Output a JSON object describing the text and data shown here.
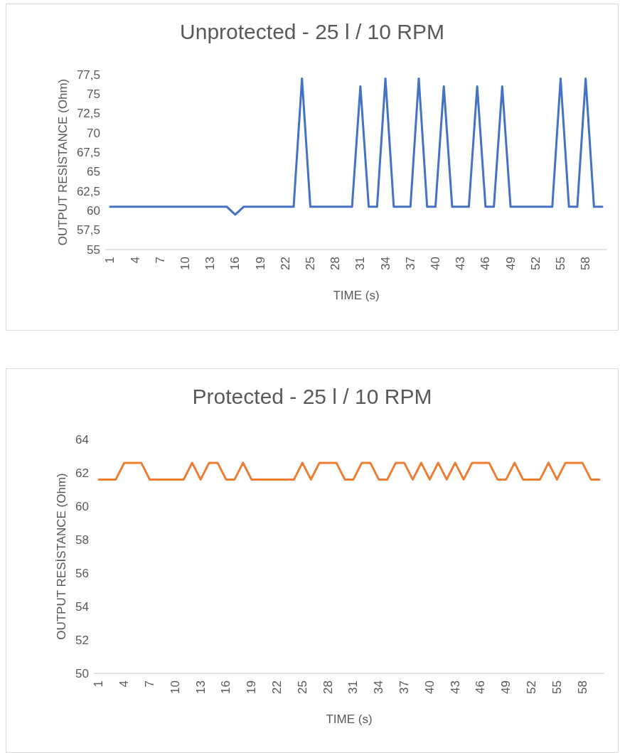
{
  "chart_data": [
    {
      "type": "line",
      "title": "Unprotected - 25 l / 10 RPM",
      "xlabel": "TIME (s)",
      "ylabel": "OUTPUT RESİSTANCE (Ohm)",
      "categories": [
        "1",
        null,
        null,
        "4",
        null,
        null,
        "7",
        null,
        null,
        "10",
        null,
        null,
        "13",
        null,
        null,
        "16",
        null,
        null,
        "19",
        null,
        null,
        "22",
        null,
        null,
        "25",
        null,
        null,
        "28",
        null,
        null,
        "31",
        null,
        null,
        "34",
        null,
        null,
        "37",
        null,
        null,
        "40",
        null,
        null,
        "43",
        null,
        null,
        "46",
        null,
        null,
        "49",
        null,
        null,
        "52",
        null,
        null,
        "55",
        null,
        null,
        "58",
        null,
        null
      ],
      "series": [
        {
          "color": "#4472c4",
          "values": [
            60.5,
            60.5,
            60.5,
            60.5,
            60.5,
            60.5,
            60.5,
            60.5,
            60.5,
            60.5,
            60.5,
            60.5,
            60.5,
            60.5,
            60.5,
            59.5,
            60.5,
            60.5,
            60.5,
            60.5,
            60.5,
            60.5,
            60.5,
            77,
            60.5,
            60.5,
            60.5,
            60.5,
            60.5,
            60.5,
            76,
            60.5,
            60.5,
            77,
            60.5,
            60.5,
            60.5,
            77,
            60.5,
            60.5,
            76,
            60.5,
            60.5,
            60.5,
            76,
            60.5,
            60.5,
            76,
            60.5,
            60.5,
            60.5,
            60.5,
            60.5,
            60.5,
            77,
            60.5,
            60.5,
            77,
            60.5,
            60.5
          ]
        }
      ],
      "ylim": [
        55,
        77.5
      ],
      "yticks": [
        55,
        {
          "value": 57.5,
          "label": "57,5"
        },
        60,
        {
          "value": 62.5,
          "label": "62,5"
        },
        65,
        {
          "value": 67.5,
          "label": "67,5"
        },
        70,
        {
          "value": 72.5,
          "label": "72,5"
        },
        75,
        {
          "value": 77.5,
          "label": "77,5"
        }
      ],
      "grid": false,
      "marker": "none"
    },
    {
      "type": "line",
      "title": "Protected - 25 l / 10 RPM",
      "xlabel": "TIME (s)",
      "ylabel": "OUTPUT RESİSTANCE (Ohm)",
      "categories": [
        "1",
        null,
        null,
        "4",
        null,
        null,
        "7",
        null,
        null,
        "10",
        null,
        null,
        "13",
        null,
        null,
        "16",
        null,
        null,
        "19",
        null,
        null,
        "22",
        null,
        null,
        "25",
        null,
        null,
        "28",
        null,
        null,
        "31",
        null,
        null,
        "34",
        null,
        null,
        "37",
        null,
        null,
        "40",
        null,
        null,
        "43",
        null,
        null,
        "46",
        null,
        null,
        "49",
        null,
        null,
        "52",
        null,
        null,
        "55",
        null,
        null,
        "58",
        null,
        null
      ],
      "series": [
        {
          "color": "#ed7d31",
          "values": [
            61.6,
            61.6,
            61.6,
            62.6,
            62.6,
            62.6,
            61.6,
            61.6,
            61.6,
            61.6,
            61.6,
            62.6,
            61.6,
            62.6,
            62.6,
            61.6,
            61.6,
            62.6,
            61.6,
            61.6,
            61.6,
            61.6,
            61.6,
            61.6,
            62.6,
            61.6,
            62.6,
            62.6,
            62.6,
            61.6,
            61.6,
            62.6,
            62.6,
            61.6,
            61.6,
            62.6,
            62.6,
            61.6,
            62.6,
            61.6,
            62.6,
            61.6,
            62.6,
            61.6,
            62.6,
            62.6,
            62.6,
            61.6,
            61.6,
            62.6,
            61.6,
            61.6,
            61.6,
            62.6,
            61.6,
            62.6,
            62.6,
            62.6,
            61.6,
            61.6
          ]
        }
      ],
      "ylim": [
        50,
        64
      ],
      "yticks": [
        50,
        52,
        54,
        56,
        58,
        60,
        62,
        64
      ],
      "grid": false,
      "marker": "none"
    }
  ]
}
